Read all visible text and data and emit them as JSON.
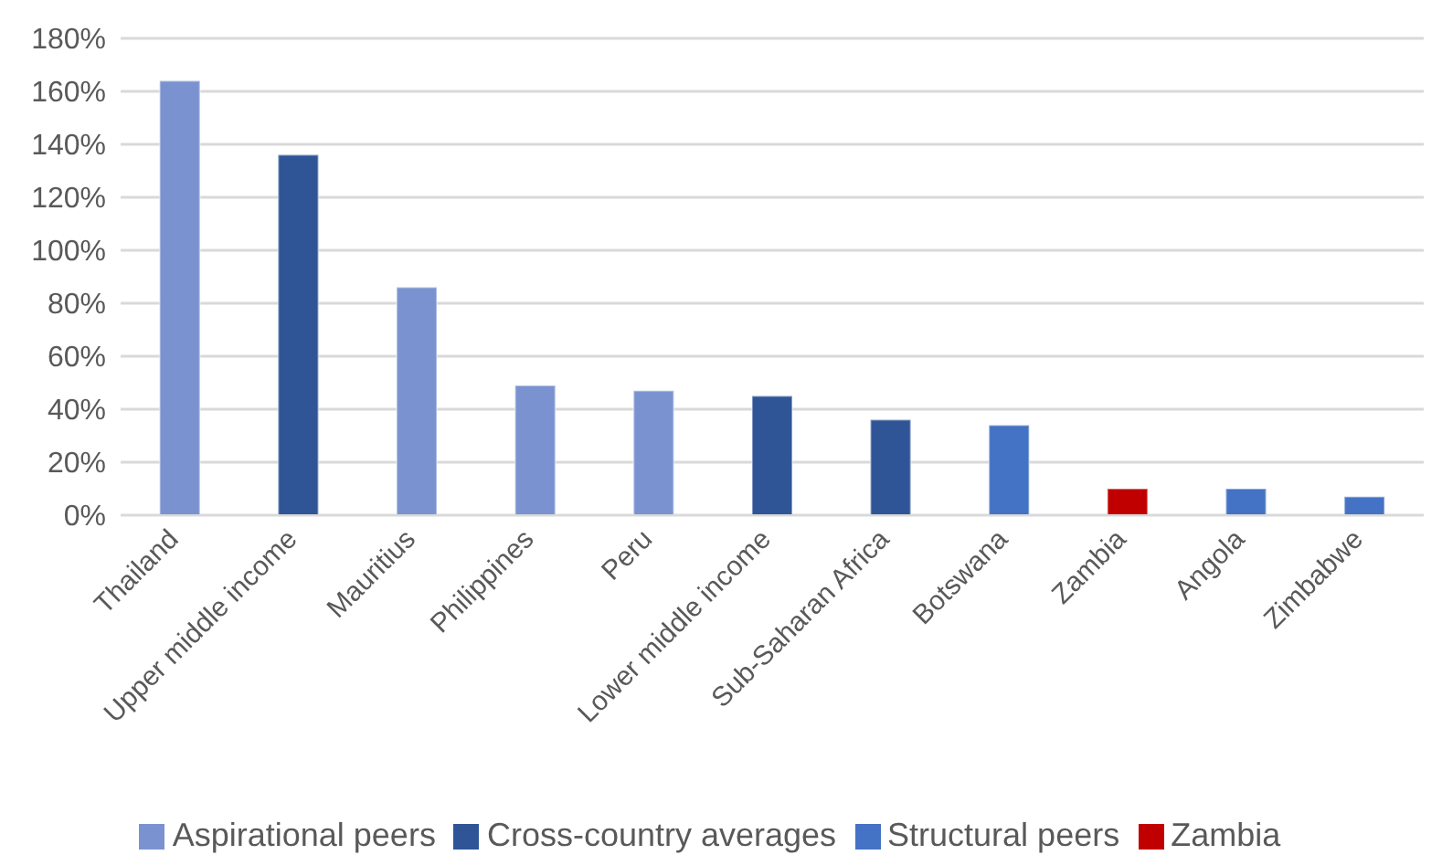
{
  "chart_data": {
    "type": "bar",
    "stacked": true,
    "categories": [
      "Thailand",
      "Upper middle income",
      "Mauritius",
      "Philippines",
      "Peru",
      "Lower middle income",
      "Sub-Saharan Africa",
      "Botswana",
      "Zambia",
      "Angola",
      "Zimbabwe"
    ],
    "series": [
      {
        "name": "Cross-country averages",
        "color": "#2f5597",
        "values": [
          null,
          136,
          null,
          null,
          null,
          45,
          36,
          null,
          null,
          null,
          null
        ]
      },
      {
        "name": "Structural peers",
        "color": "#4472c4",
        "values": [
          null,
          null,
          null,
          null,
          null,
          null,
          null,
          34,
          null,
          10,
          7
        ]
      },
      {
        "name": "Aspirational peers",
        "color": "#7a93d0",
        "values": [
          164,
          null,
          86,
          49,
          47,
          null,
          null,
          null,
          null,
          null,
          null
        ]
      },
      {
        "name": "Zambia",
        "color": "#c00000",
        "values": [
          null,
          null,
          null,
          null,
          null,
          null,
          null,
          null,
          10,
          null,
          null
        ]
      }
    ],
    "ylim": [
      0,
      180
    ],
    "yticks": [
      {
        "value": 0,
        "label": "0%"
      },
      {
        "value": 20,
        "label": "20%"
      },
      {
        "value": 40,
        "label": "40%"
      },
      {
        "value": 60,
        "label": "60%"
      },
      {
        "value": 80,
        "label": "80%"
      },
      {
        "value": 100,
        "label": "100%"
      },
      {
        "value": 120,
        "label": "120%"
      },
      {
        "value": 140,
        "label": "140%"
      },
      {
        "value": 160,
        "label": "160%"
      },
      {
        "value": 180,
        "label": "180%"
      }
    ],
    "grid": "y",
    "legend": "bottom"
  }
}
